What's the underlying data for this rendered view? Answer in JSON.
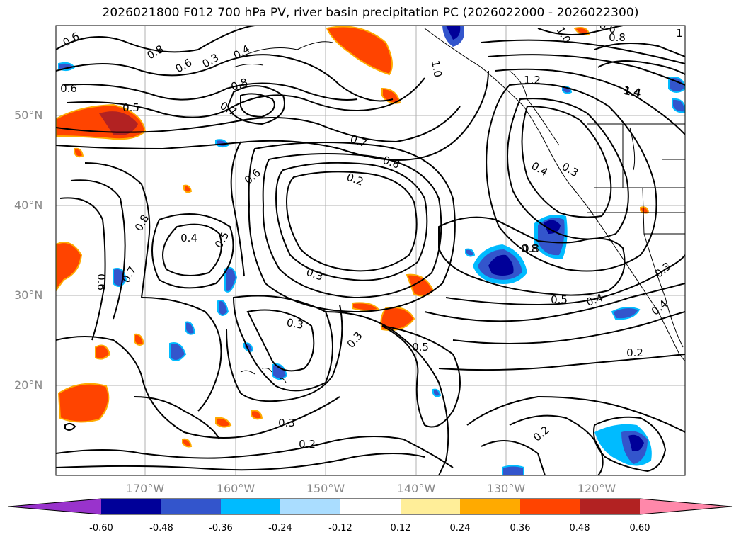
{
  "title": "2026021800 F012 700 hPa PV, river basin precipitation PC (2026022000 - 2026022300)",
  "lat_labels": [
    "50°N",
    "40°N",
    "30°N",
    "20°N"
  ],
  "lon_labels": [
    "170°W",
    "160°W",
    "150°W",
    "140°W",
    "130°W",
    "120°W"
  ],
  "colorbar": {
    "ticks": [
      "-0.60",
      "-0.48",
      "-0.36",
      "-0.24",
      "-0.12",
      "0.12",
      "0.24",
      "0.36",
      "0.48",
      "0.60"
    ],
    "colors": [
      "#9933cc",
      "#000099",
      "#3355cc",
      "#00bbff",
      "#aaddff",
      "#ffffff",
      "#ffee99",
      "#ffaa00",
      "#ff4400",
      "#b22222",
      "#ff88aa"
    ]
  },
  "contour_labels": [
    "0.6",
    "0.8",
    "0.6",
    "0.3",
    "0.4",
    "0.7",
    "0.8",
    "1.0",
    "1.2",
    "1.4",
    "0.6",
    "0.5",
    "0.7",
    "0.6",
    "0.2",
    "0.6",
    "0.4",
    "0.3",
    "0.8",
    "0.4",
    "0.5",
    "0.7",
    "0.8",
    "0.6",
    "0.3",
    "0.5",
    "0.4",
    "0.3",
    "0.3",
    "0.5",
    "0.3",
    "0.2",
    "0.2",
    "0.3",
    "0.4",
    "0.2",
    "0.8",
    "1.4",
    "1.0",
    "0.6",
    "0.8",
    "1"
  ]
}
